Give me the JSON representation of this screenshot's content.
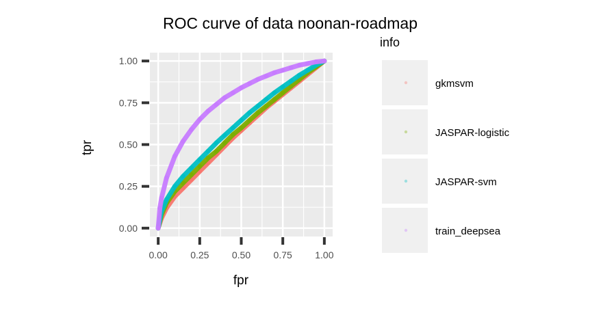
{
  "chart_data": {
    "type": "scatter",
    "title": "ROC curve of data noonan-roadmap",
    "xlabel": "fpr",
    "ylabel": "tpr",
    "xlim": [
      -0.05,
      1.05
    ],
    "ylim": [
      -0.05,
      1.05
    ],
    "x_ticks": [
      0,
      0.25,
      0.5,
      0.75,
      1
    ],
    "x_tick_labels": [
      "0.00",
      "0.25",
      "0.50",
      "0.75",
      "1.00"
    ],
    "y_ticks": [
      0,
      0.25,
      0.5,
      0.75,
      1
    ],
    "y_tick_labels": [
      "0.00",
      "0.25",
      "0.50",
      "0.75",
      "1.00"
    ],
    "grid": true,
    "legend_title": "info",
    "legend_position": "right",
    "series": [
      {
        "name": "gkmsvm",
        "color": "#F8766D",
        "x": [
          0,
          0.02,
          0.05,
          0.1,
          0.15,
          0.2,
          0.25,
          0.3,
          0.35,
          0.4,
          0.45,
          0.5,
          0.55,
          0.6,
          0.65,
          0.7,
          0.75,
          0.8,
          0.85,
          0.9,
          0.95,
          1
        ],
        "y": [
          0,
          0.06,
          0.12,
          0.19,
          0.24,
          0.29,
          0.34,
          0.39,
          0.44,
          0.49,
          0.54,
          0.585,
          0.63,
          0.675,
          0.72,
          0.76,
          0.8,
          0.84,
          0.88,
          0.92,
          0.96,
          1
        ]
      },
      {
        "name": "JASPAR-logistic",
        "color": "#7CAE00",
        "x": [
          0,
          0.02,
          0.05,
          0.1,
          0.15,
          0.2,
          0.25,
          0.3,
          0.35,
          0.4,
          0.45,
          0.5,
          0.55,
          0.6,
          0.65,
          0.7,
          0.75,
          0.8,
          0.85,
          0.9,
          0.95,
          1
        ],
        "y": [
          0,
          0.08,
          0.15,
          0.22,
          0.27,
          0.32,
          0.37,
          0.42,
          0.46,
          0.51,
          0.56,
          0.6,
          0.645,
          0.69,
          0.73,
          0.77,
          0.81,
          0.85,
          0.89,
          0.93,
          0.965,
          1
        ]
      },
      {
        "name": "JASPAR-svm",
        "color": "#00BFC4",
        "x": [
          0,
          0.02,
          0.05,
          0.1,
          0.15,
          0.2,
          0.25,
          0.3,
          0.35,
          0.4,
          0.45,
          0.5,
          0.55,
          0.6,
          0.65,
          0.7,
          0.75,
          0.8,
          0.85,
          0.9,
          0.95,
          1
        ],
        "y": [
          0,
          0.1,
          0.17,
          0.25,
          0.31,
          0.36,
          0.41,
          0.46,
          0.51,
          0.555,
          0.6,
          0.645,
          0.69,
          0.73,
          0.77,
          0.81,
          0.845,
          0.88,
          0.915,
          0.945,
          0.975,
          1
        ]
      },
      {
        "name": "train_deepsea",
        "color": "#C77CFF",
        "x": [
          0,
          0.01,
          0.02,
          0.05,
          0.1,
          0.15,
          0.2,
          0.25,
          0.3,
          0.35,
          0.4,
          0.45,
          0.5,
          0.55,
          0.6,
          0.65,
          0.7,
          0.75,
          0.8,
          0.85,
          0.9,
          0.95,
          1
        ],
        "y": [
          0,
          0.12,
          0.18,
          0.3,
          0.43,
          0.52,
          0.59,
          0.65,
          0.7,
          0.74,
          0.78,
          0.81,
          0.84,
          0.865,
          0.89,
          0.91,
          0.93,
          0.945,
          0.96,
          0.975,
          0.985,
          0.995,
          1
        ]
      }
    ]
  }
}
